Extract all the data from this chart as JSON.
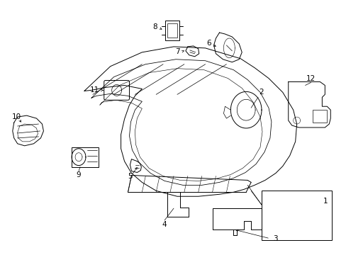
{
  "bg_color": "#ffffff",
  "line_color": "#000000",
  "fig_width": 4.89,
  "fig_height": 3.6,
  "dpi": 100,
  "label_fs": 7.5,
  "lw": 0.7
}
